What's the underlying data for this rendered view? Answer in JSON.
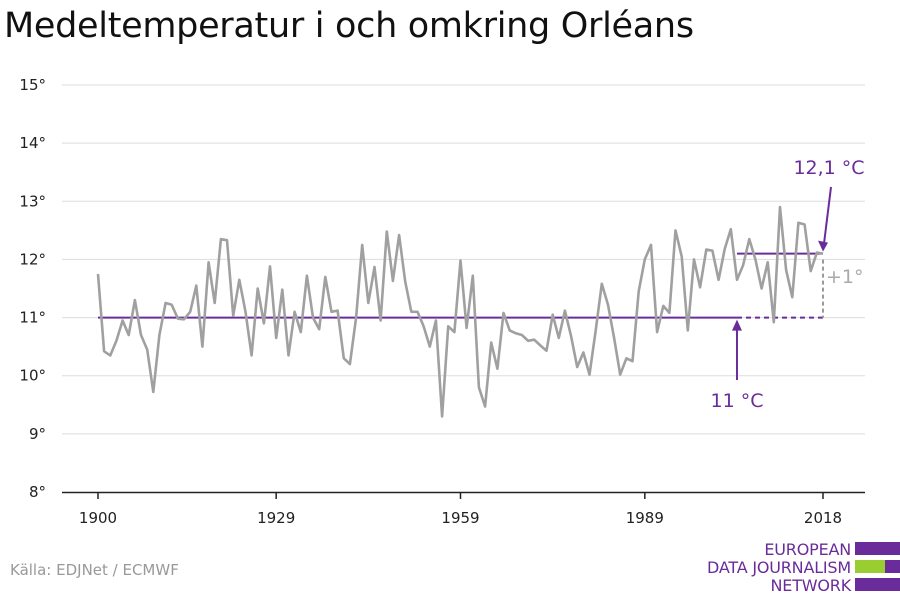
{
  "title": "Medeltemperatur i och omkring Orléans",
  "source": "Källa: EDJNet / ECMWF",
  "logo": {
    "lines": [
      "EUROPEAN",
      "DATA JOURNALISM",
      "NETWORK"
    ]
  },
  "colors": {
    "line": "#a0a0a0",
    "accent": "#6a2c9a",
    "grid": "#dddddd",
    "green": "#9acd32"
  },
  "chart_data": {
    "type": "line",
    "title": "Medeltemperatur i och omkring Orléans",
    "xlabel": "",
    "ylabel": "",
    "xlim": [
      1900,
      2018
    ],
    "ylim": [
      8,
      15
    ],
    "y_ticks": [
      "15°",
      "14°",
      "13°",
      "12°",
      "11°",
      "10°",
      "9°",
      "8°"
    ],
    "x_ticks": [
      1900,
      1929,
      1959,
      1989,
      2018
    ],
    "x_tick_labels": [
      "1900",
      "1929",
      "1959",
      "1989",
      "2018"
    ],
    "grid": true,
    "series": [
      {
        "x": [
          1900,
          1901,
          1902,
          1903,
          1904,
          1905,
          1906,
          1907,
          1908,
          1909,
          1910,
          1911,
          1912,
          1913,
          1914,
          1915,
          1916,
          1917,
          1918,
          1919,
          1920,
          1921,
          1922,
          1923,
          1924,
          1925,
          1926,
          1927,
          1928,
          1929,
          1930,
          1931,
          1932,
          1933,
          1934,
          1935,
          1936,
          1937,
          1938,
          1939,
          1940,
          1941,
          1942,
          1943,
          1944,
          1945,
          1946,
          1947,
          1948,
          1949,
          1950,
          1951,
          1952,
          1953,
          1954,
          1955,
          1956,
          1957,
          1958,
          1959,
          1960,
          1961,
          1962,
          1963,
          1964,
          1965,
          1966,
          1967,
          1968,
          1969,
          1970,
          1971,
          1972,
          1973,
          1974,
          1975,
          1976,
          1977,
          1978,
          1979,
          1980,
          1981,
          1982,
          1983,
          1984,
          1985,
          1986,
          1987,
          1988,
          1989,
          1990,
          1991,
          1992,
          1993,
          1994,
          1995,
          1996,
          1997,
          1998,
          1999,
          2000,
          2001,
          2002,
          2003,
          2004,
          2005,
          2006,
          2007,
          2008,
          2009,
          2010,
          2011,
          2012,
          2013,
          2014,
          2015,
          2016,
          2017,
          2018
        ],
        "values": [
          11.75,
          10.42,
          10.35,
          10.6,
          10.95,
          10.7,
          11.3,
          10.7,
          10.45,
          9.72,
          10.7,
          11.25,
          11.22,
          10.98,
          10.97,
          11.1,
          11.55,
          10.5,
          11.95,
          11.25,
          12.35,
          12.33,
          11.03,
          11.65,
          11.1,
          10.35,
          11.5,
          10.9,
          11.88,
          10.65,
          11.48,
          10.35,
          11.1,
          10.75,
          11.72,
          11.0,
          10.8,
          11.7,
          11.1,
          11.12,
          10.3,
          10.2,
          11.0,
          12.25,
          11.25,
          11.87,
          10.95,
          12.48,
          11.63,
          12.42,
          11.62,
          11.1,
          11.1,
          10.85,
          10.5,
          10.95,
          9.3,
          10.85,
          10.75,
          11.98,
          10.82,
          11.72,
          9.8,
          9.47,
          10.57,
          10.12,
          11.08,
          10.78,
          10.73,
          10.7,
          10.6,
          10.62,
          10.52,
          10.43,
          11.05,
          10.65,
          11.12,
          10.68,
          10.15,
          10.4,
          10.02,
          10.78,
          11.58,
          11.22,
          10.65,
          10.02,
          10.3,
          10.25,
          11.45,
          12.0,
          12.25,
          10.75,
          11.2,
          11.08,
          12.5,
          12.05,
          10.78,
          12.0,
          11.52,
          12.17,
          12.15,
          11.65,
          12.18,
          12.52,
          11.65,
          11.9,
          12.35,
          12.0,
          11.5,
          11.95,
          10.92,
          12.9,
          11.82,
          11.35,
          12.63,
          12.6,
          11.8,
          12.12,
          12.1
        ]
      }
    ],
    "baseline": {
      "value": 11.0,
      "from": 1900,
      "to": 2018,
      "label": "11 °C"
    },
    "recent": {
      "value": 12.1,
      "from": 2004,
      "to": 2018,
      "label": "12,1 °C"
    },
    "difference_label": "+1°"
  }
}
